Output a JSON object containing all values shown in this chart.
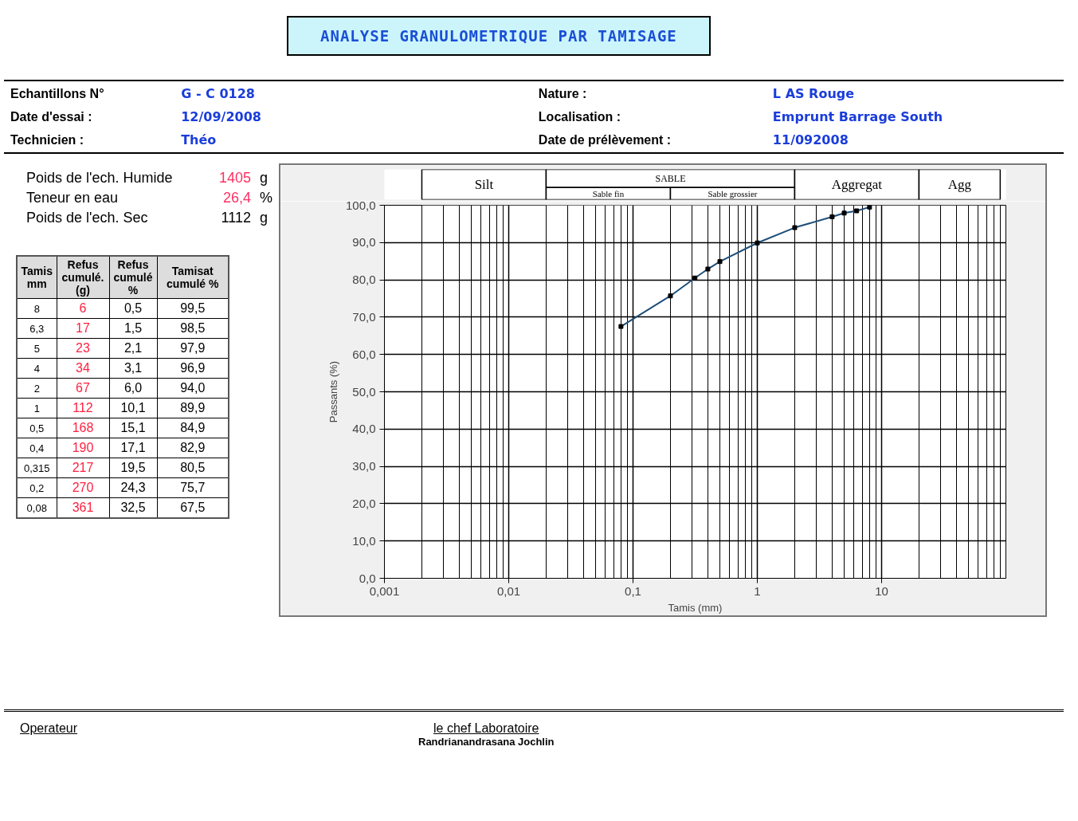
{
  "chart_data": {
    "type": "line",
    "title": "ANALYSE GRANULOMETRIQUE PAR TAMISAGE",
    "xlabel": "Tamis (mm)",
    "ylabel": "Passants (%)",
    "log": "x",
    "x": [
      8,
      6.3,
      5,
      4,
      2,
      1,
      0.5,
      0.4,
      0.315,
      0.2,
      0.08
    ],
    "series": [
      {
        "color": "#1f4e79",
        "values": [
          99.5,
          98.5,
          97.9,
          96.9,
          94.0,
          89.9,
          84.9,
          82.9,
          80.5,
          75.7,
          67.5
        ]
      }
    ],
    "marker": "square",
    "line_style": "solid",
    "grid": true,
    "xlim": [
      0.001,
      100
    ],
    "xticks": [
      {
        "value": 0.001,
        "label": "0,001"
      },
      {
        "value": 0.01,
        "label": "0,01"
      },
      {
        "value": 0.1,
        "label": "0,1"
      },
      {
        "value": 1,
        "label": "1"
      },
      {
        "value": 10,
        "label": "10"
      }
    ],
    "ylim": [
      0,
      100
    ],
    "yticks": [
      {
        "value": 0,
        "label": "0,0"
      },
      {
        "value": 10,
        "label": "10,0"
      },
      {
        "value": 20,
        "label": "20,0"
      },
      {
        "value": 30,
        "label": "30,0"
      },
      {
        "value": 40,
        "label": "40,0"
      },
      {
        "value": 50,
        "label": "50,0"
      },
      {
        "value": 60,
        "label": "60,0"
      },
      {
        "value": 70,
        "label": "70,0"
      },
      {
        "value": 80,
        "label": "80,0"
      },
      {
        "value": 90,
        "label": "90,0"
      },
      {
        "value": 100,
        "label": "100,0"
      }
    ],
    "bands": [
      {
        "axis": "x",
        "from": 0.002,
        "to": 0.02,
        "label": "Silt"
      },
      {
        "axis": "x",
        "from": 0.02,
        "to": 2,
        "label": "SABLE"
      },
      {
        "axis": "x",
        "from": 0.02,
        "to": 0.2,
        "label": "Sable fin"
      },
      {
        "axis": "x",
        "from": 0.2,
        "to": 2,
        "label": "Sable grossier"
      },
      {
        "axis": "x",
        "from": 2,
        "to": 20,
        "label": "Aggregat"
      },
      {
        "axis": "x",
        "from": 20,
        "to": 90,
        "label": "Agg"
      }
    ],
    "annotations": [
      "Echantillons N°",
      "G - C 0128",
      "Date d'essai :",
      "12/09/2008",
      "Technicien :",
      "Théo",
      "Nature :",
      "L AS Rouge",
      "Localisation :",
      "Emprunt Barrage South",
      "Date de prélèvement :",
      "11/092008",
      "Poids de l'ech. Humide",
      "1405",
      "g",
      "Teneur en eau",
      "26,4",
      "%",
      "Poids de l'ech. Sec",
      "1112",
      "g",
      "Tamis mm",
      "Refus cumulé.(g)",
      "Refus cumulé %",
      "Tamisat cumulé %",
      "8",
      "6",
      "0,5",
      "99,5",
      "6,3",
      "17",
      "1,5",
      "98,5",
      "5",
      "23",
      "2,1",
      "97,9",
      "4",
      "34",
      "3,1",
      "96,9",
      "2",
      "67",
      "6,0",
      "94,0",
      "1",
      "112",
      "10,1",
      "89,9",
      "0,5",
      "168",
      "15,1",
      "84,9",
      "0,4",
      "190",
      "17,1",
      "82,9",
      "0,315",
      "217",
      "19,5",
      "80,5",
      "0,2",
      "270",
      "24,3",
      "75,7",
      "0,08",
      "361",
      "32,5",
      "67,5",
      "Operateur",
      "le chef Laboratoire",
      "Randrianandrasana Jochlin"
    ]
  }
}
